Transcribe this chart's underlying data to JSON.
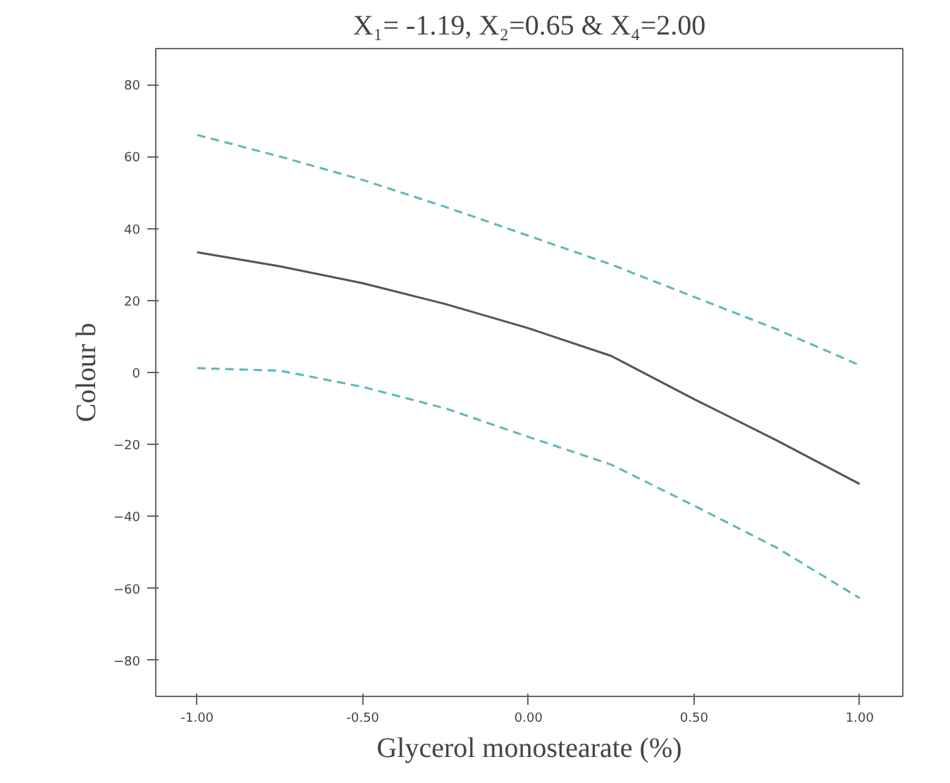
{
  "chart_data": {
    "type": "line",
    "title": "X₁= -1.19, X₂=0.65 & X₄=2.00",
    "xlabel": "Glycerol monostearate (%)",
    "ylabel": "Colour b",
    "x": [
      -1,
      -0.75,
      -0.5,
      -0.25,
      0,
      0.25,
      0.5,
      0.75,
      1
    ],
    "series": [
      {
        "color": "#5fb8b8",
        "line_style": "dashed",
        "values": [
          66,
          60,
          53.5,
          46,
          38,
          30,
          21,
          12,
          2
        ]
      },
      {
        "color": "#555555",
        "line_style": "solid",
        "values": [
          33.4,
          29.5,
          24.8,
          19,
          12.3,
          4.6,
          -7.4,
          -18.9,
          -31
        ]
      },
      {
        "color": "#5fb8b8",
        "line_style": "dashed",
        "values": [
          1.2,
          0.5,
          -4,
          -10,
          -17.9,
          -25.6,
          -37,
          -48.7,
          -62.7
        ]
      }
    ],
    "xlim": [
      -1.125,
      1.13
    ],
    "ylim": [
      -90,
      90
    ],
    "xticks": [
      {
        "value": -1,
        "label": "-1.00"
      },
      {
        "value": -0.5,
        "label": "-0.50"
      },
      {
        "value": 0,
        "label": "0.00"
      },
      {
        "value": 0.5,
        "label": "0.50"
      },
      {
        "value": 1,
        "label": "1.00"
      }
    ],
    "yticks": [
      -80,
      -60,
      -40,
      -20,
      0,
      20,
      40,
      60,
      80
    ],
    "grid": false,
    "marker": "none"
  }
}
